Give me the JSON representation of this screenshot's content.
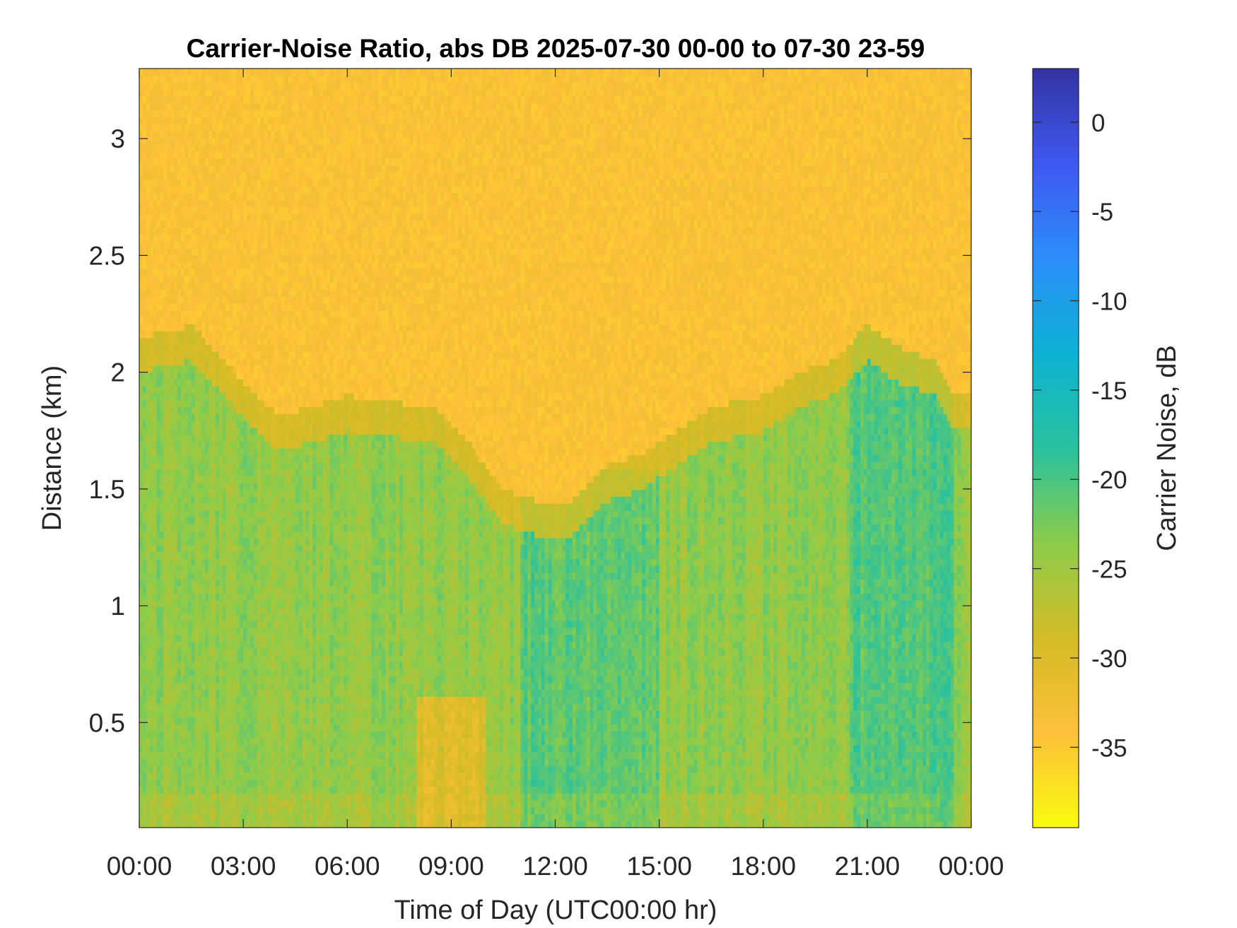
{
  "chart_data": {
    "type": "heatmap",
    "title": "Carrier-Noise Ratio, abs DB 2025-07-30 00-00 to 07-30 23-59",
    "xlabel": "Time of Day (UTC00:00 hr)",
    "ylabel": "Distance (km)",
    "colorbar_label": "Carrier Noise, dB",
    "x_tick_labels": [
      "00:00",
      "03:00",
      "06:00",
      "09:00",
      "12:00",
      "15:00",
      "18:00",
      "21:00",
      "00:00"
    ],
    "x_ticks_hours": [
      0,
      3,
      6,
      9,
      12,
      15,
      18,
      21,
      24
    ],
    "xlim_hours": [
      0,
      24
    ],
    "y_ticks": [
      0.5,
      1,
      1.5,
      2,
      2.5,
      3
    ],
    "y_tick_labels": [
      "0.5",
      "1",
      "1.5",
      "2",
      "2.5",
      "3"
    ],
    "ylim": [
      0.05,
      3.3
    ],
    "colorbar_ticks": [
      0,
      -5,
      -10,
      -15,
      -20,
      -25,
      -30,
      -35
    ],
    "colorbar_tick_labels": [
      "0",
      "-5",
      "-10",
      "-15",
      "-20",
      "-25",
      "-30",
      "-35"
    ],
    "colorbar_range": [
      -39.5,
      3
    ],
    "colormap": "parula (reversed: yellow low, dark blue high)",
    "colormap_colors": [
      "#f9fb0e",
      "#fdc03a",
      "#d4bb27",
      "#8ccc4a",
      "#29c19f",
      "#0cb2d3",
      "#2c8dfa",
      "#3f58f0",
      "#3233a0"
    ],
    "background_level_db": -34,
    "boundary_layer_top_km": [
      [
        0,
        2.15
      ],
      [
        1.5,
        2.2
      ],
      [
        2.5,
        2.05
      ],
      [
        3,
        1.95
      ],
      [
        4,
        1.82
      ],
      [
        5,
        1.85
      ],
      [
        6,
        1.9
      ],
      [
        7,
        1.88
      ],
      [
        8.5,
        1.85
      ],
      [
        9.5,
        1.7
      ],
      [
        10.5,
        1.5
      ],
      [
        11.5,
        1.45
      ],
      [
        12.5,
        1.45
      ],
      [
        13.5,
        1.6
      ],
      [
        14.5,
        1.65
      ],
      [
        15.5,
        1.75
      ],
      [
        16.5,
        1.85
      ],
      [
        18,
        1.9
      ],
      [
        19,
        2.0
      ],
      [
        20,
        2.05
      ],
      [
        21,
        2.2
      ],
      [
        22,
        2.1
      ],
      [
        23,
        2.05
      ],
      [
        23.5,
        1.9
      ],
      [
        24,
        1.9
      ]
    ],
    "grid": false,
    "legend": "colorbar-right"
  }
}
